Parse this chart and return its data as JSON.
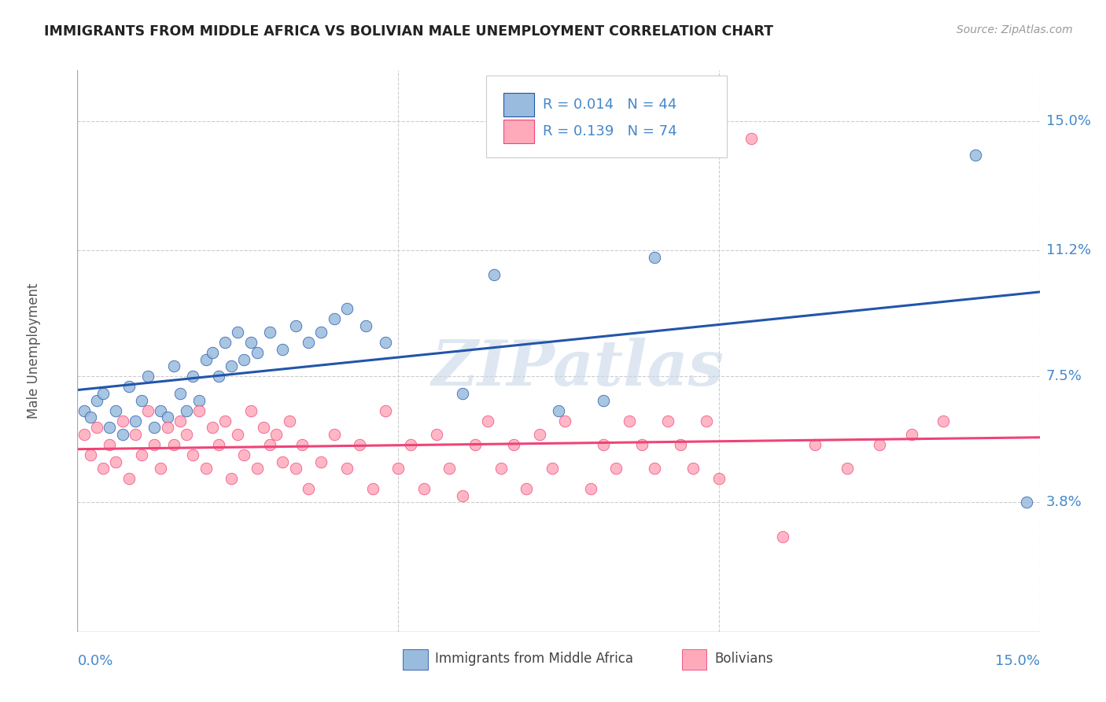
{
  "title": "IMMIGRANTS FROM MIDDLE AFRICA VS BOLIVIAN MALE UNEMPLOYMENT CORRELATION CHART",
  "source": "Source: ZipAtlas.com",
  "ylabel": "Male Unemployment",
  "xmin": 0.0,
  "xmax": 0.15,
  "ymin": 0.0,
  "ymax": 0.165,
  "yticks": [
    0.038,
    0.075,
    0.112,
    0.15
  ],
  "ytick_labels": [
    "3.8%",
    "7.5%",
    "11.2%",
    "15.0%"
  ],
  "legend_blue_r": "R = 0.014",
  "legend_blue_n": "N = 44",
  "legend_pink_r": "R = 0.139",
  "legend_pink_n": "N = 74",
  "blue_color": "#99BBDD",
  "pink_color": "#FFAABB",
  "trendline_blue_color": "#2255AA",
  "trendline_pink_color": "#EE4477",
  "blue_scatter_x": [
    0.001,
    0.002,
    0.003,
    0.004,
    0.005,
    0.006,
    0.007,
    0.008,
    0.009,
    0.01,
    0.011,
    0.012,
    0.013,
    0.014,
    0.015,
    0.016,
    0.017,
    0.018,
    0.019,
    0.02,
    0.021,
    0.022,
    0.023,
    0.024,
    0.025,
    0.026,
    0.027,
    0.028,
    0.03,
    0.032,
    0.034,
    0.036,
    0.038,
    0.04,
    0.042,
    0.045,
    0.048,
    0.06,
    0.065,
    0.075,
    0.082,
    0.09,
    0.14,
    0.148
  ],
  "blue_scatter_y": [
    0.065,
    0.063,
    0.068,
    0.07,
    0.06,
    0.065,
    0.058,
    0.072,
    0.062,
    0.068,
    0.075,
    0.06,
    0.065,
    0.063,
    0.078,
    0.07,
    0.065,
    0.075,
    0.068,
    0.08,
    0.082,
    0.075,
    0.085,
    0.078,
    0.088,
    0.08,
    0.085,
    0.082,
    0.088,
    0.083,
    0.09,
    0.085,
    0.088,
    0.092,
    0.095,
    0.09,
    0.085,
    0.07,
    0.105,
    0.065,
    0.068,
    0.11,
    0.14,
    0.038
  ],
  "pink_scatter_x": [
    0.001,
    0.002,
    0.003,
    0.004,
    0.005,
    0.006,
    0.007,
    0.008,
    0.009,
    0.01,
    0.011,
    0.012,
    0.013,
    0.014,
    0.015,
    0.016,
    0.017,
    0.018,
    0.019,
    0.02,
    0.021,
    0.022,
    0.023,
    0.024,
    0.025,
    0.026,
    0.027,
    0.028,
    0.029,
    0.03,
    0.031,
    0.032,
    0.033,
    0.034,
    0.035,
    0.036,
    0.038,
    0.04,
    0.042,
    0.044,
    0.046,
    0.048,
    0.05,
    0.052,
    0.054,
    0.056,
    0.058,
    0.06,
    0.062,
    0.064,
    0.066,
    0.068,
    0.07,
    0.072,
    0.074,
    0.076,
    0.08,
    0.082,
    0.084,
    0.086,
    0.088,
    0.09,
    0.092,
    0.094,
    0.096,
    0.098,
    0.1,
    0.105,
    0.11,
    0.115,
    0.12,
    0.125,
    0.13,
    0.135
  ],
  "pink_scatter_y": [
    0.058,
    0.052,
    0.06,
    0.048,
    0.055,
    0.05,
    0.062,
    0.045,
    0.058,
    0.052,
    0.065,
    0.055,
    0.048,
    0.06,
    0.055,
    0.062,
    0.058,
    0.052,
    0.065,
    0.048,
    0.06,
    0.055,
    0.062,
    0.045,
    0.058,
    0.052,
    0.065,
    0.048,
    0.06,
    0.055,
    0.058,
    0.05,
    0.062,
    0.048,
    0.055,
    0.042,
    0.05,
    0.058,
    0.048,
    0.055,
    0.042,
    0.065,
    0.048,
    0.055,
    0.042,
    0.058,
    0.048,
    0.04,
    0.055,
    0.062,
    0.048,
    0.055,
    0.042,
    0.058,
    0.048,
    0.062,
    0.042,
    0.055,
    0.048,
    0.062,
    0.055,
    0.048,
    0.062,
    0.055,
    0.048,
    0.062,
    0.045,
    0.145,
    0.028,
    0.055,
    0.048,
    0.055,
    0.058,
    0.062
  ],
  "watermark_text": "ZIPatlas",
  "background_color": "#FFFFFF",
  "grid_color": "#CCCCCC",
  "axis_label_color": "#4488CC",
  "title_color": "#222222"
}
